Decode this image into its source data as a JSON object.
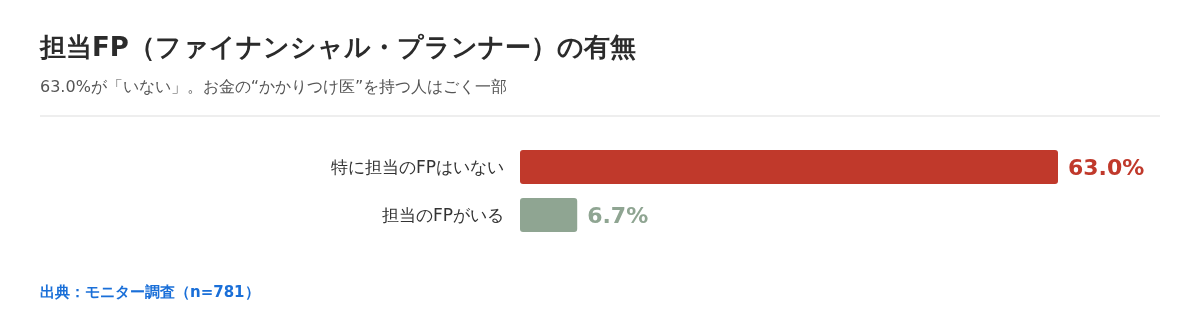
{
  "chart_data": {
    "type": "bar",
    "orientation": "horizontal",
    "title": "担当FP（ファイナンシャル・プランナー）の有無",
    "subtitle": "63.0%が「いない」。お金の“かかりつけ医”を持つ人はごく一部",
    "categories": [
      "特に担当のFPはいない",
      "担当のFPがいる"
    ],
    "values": [
      63.0,
      6.7
    ],
    "colors": [
      "#c0392b",
      "#8fa592"
    ],
    "value_labels": [
      "63.0%",
      "6.7%"
    ],
    "annotations": [
      "出典：モニター調査（n=781）"
    ]
  }
}
